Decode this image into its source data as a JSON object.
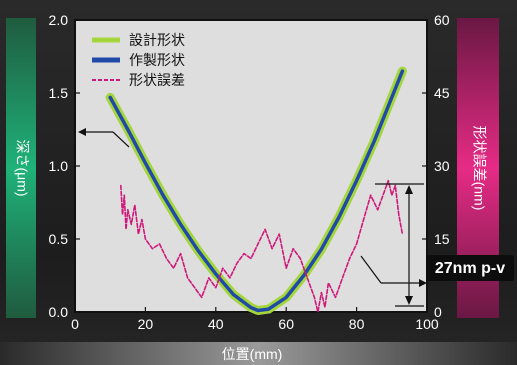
{
  "chart_data": {
    "type": "line",
    "xlabel": "位置(mm)",
    "ylabel": "深さ(μm)",
    "y2label": "形状誤差(nm)",
    "xlim": [
      0,
      100
    ],
    "ylim": [
      0,
      2.0
    ],
    "y2lim": [
      0,
      60
    ],
    "xticks": [
      0,
      20,
      40,
      60,
      80,
      100
    ],
    "yticks": [
      "0.0",
      "0.5",
      "1.0",
      "1.5",
      "2.0"
    ],
    "y2ticks": [
      0,
      15,
      30,
      45,
      60
    ],
    "grid": false,
    "legend_position": "top-left",
    "series": [
      {
        "name": "設計形状",
        "axis": "left",
        "color": "#a4d53a",
        "x": [
          10,
          15,
          20,
          25,
          30,
          35,
          40,
          45,
          50,
          52,
          55,
          60,
          65,
          70,
          75,
          80,
          85,
          90,
          93
        ],
        "y": [
          1.47,
          1.25,
          1.02,
          0.8,
          0.6,
          0.42,
          0.26,
          0.12,
          0.03,
          0.01,
          0.02,
          0.1,
          0.25,
          0.43,
          0.65,
          0.9,
          1.17,
          1.47,
          1.65
        ]
      },
      {
        "name": "作製形状",
        "axis": "left",
        "color": "#1f4aa8",
        "x": [
          10,
          15,
          20,
          25,
          30,
          35,
          40,
          45,
          50,
          52,
          55,
          60,
          65,
          70,
          75,
          80,
          85,
          90,
          93
        ],
        "y": [
          1.47,
          1.25,
          1.02,
          0.8,
          0.6,
          0.42,
          0.26,
          0.12,
          0.03,
          0.01,
          0.02,
          0.1,
          0.25,
          0.43,
          0.65,
          0.9,
          1.17,
          1.47,
          1.65
        ]
      },
      {
        "name": "形状誤差",
        "axis": "right",
        "color": "#d0187a",
        "x": [
          13,
          13.5,
          14,
          14.5,
          15,
          16,
          17,
          18,
          19,
          20,
          22,
          24,
          26,
          28,
          30,
          32,
          34,
          36,
          38,
          40,
          42,
          44,
          46,
          48,
          50,
          52,
          54,
          56,
          58,
          60,
          62,
          64,
          66,
          68,
          69,
          70,
          71,
          72,
          74,
          76,
          78,
          80,
          82,
          84,
          86,
          88,
          89,
          90,
          91,
          92,
          93
        ],
        "y": [
          26,
          20,
          24,
          17,
          21,
          18,
          22,
          16,
          19,
          15,
          13,
          14,
          11,
          9,
          12,
          7,
          5,
          3,
          7,
          5,
          9,
          7,
          10,
          12,
          11,
          14,
          17,
          13,
          16,
          9,
          13,
          11,
          7,
          3,
          0,
          4,
          1,
          6,
          3,
          7,
          11,
          14,
          19,
          24,
          21,
          25,
          27,
          24,
          26,
          20,
          16
        ]
      }
    ],
    "annotations": [
      {
        "text": "27nm p-v"
      }
    ]
  }
}
